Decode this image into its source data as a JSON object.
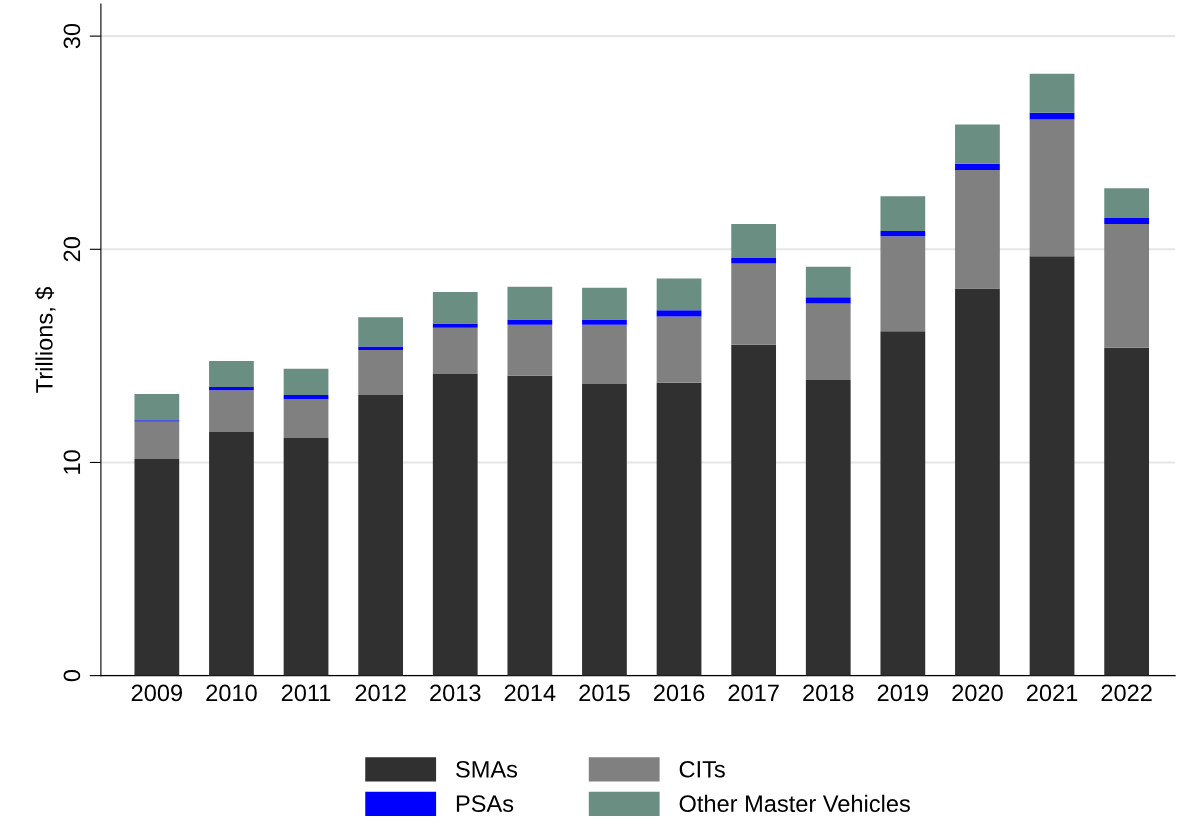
{
  "chart_data": {
    "type": "bar",
    "stacked": true,
    "ylabel": "Trillions, $",
    "categories": [
      "2009",
      "2010",
      "2011",
      "2012",
      "2013",
      "2014",
      "2015",
      "2016",
      "2017",
      "2018",
      "2019",
      "2020",
      "2021",
      "2022"
    ],
    "series": [
      {
        "name": "SMAs",
        "color": "#303030",
        "values": [
          10.16,
          11.43,
          11.15,
          13.17,
          14.15,
          14.07,
          13.68,
          13.74,
          15.52,
          13.87,
          16.16,
          18.16,
          19.67,
          15.38
        ]
      },
      {
        "name": "CITs",
        "color": "#808080",
        "values": [
          1.76,
          1.96,
          1.82,
          2.11,
          2.17,
          2.39,
          2.78,
          3.11,
          3.81,
          3.59,
          4.45,
          5.56,
          6.42,
          5.81
        ]
      },
      {
        "name": "PSAs",
        "color": "#0000ff",
        "values": [
          0.06,
          0.15,
          0.2,
          0.16,
          0.2,
          0.25,
          0.25,
          0.29,
          0.26,
          0.29,
          0.25,
          0.29,
          0.31,
          0.28
        ]
      },
      {
        "name": "Other Master Vehicles",
        "color": "#6b8e82",
        "values": [
          1.23,
          1.22,
          1.23,
          1.37,
          1.48,
          1.53,
          1.49,
          1.49,
          1.6,
          1.43,
          1.63,
          1.84,
          1.84,
          1.39
        ]
      }
    ],
    "ylim": [
      0,
      31.5
    ],
    "yticks": [
      0,
      10,
      20,
      30
    ],
    "grid": "y",
    "legend": "bottom"
  }
}
